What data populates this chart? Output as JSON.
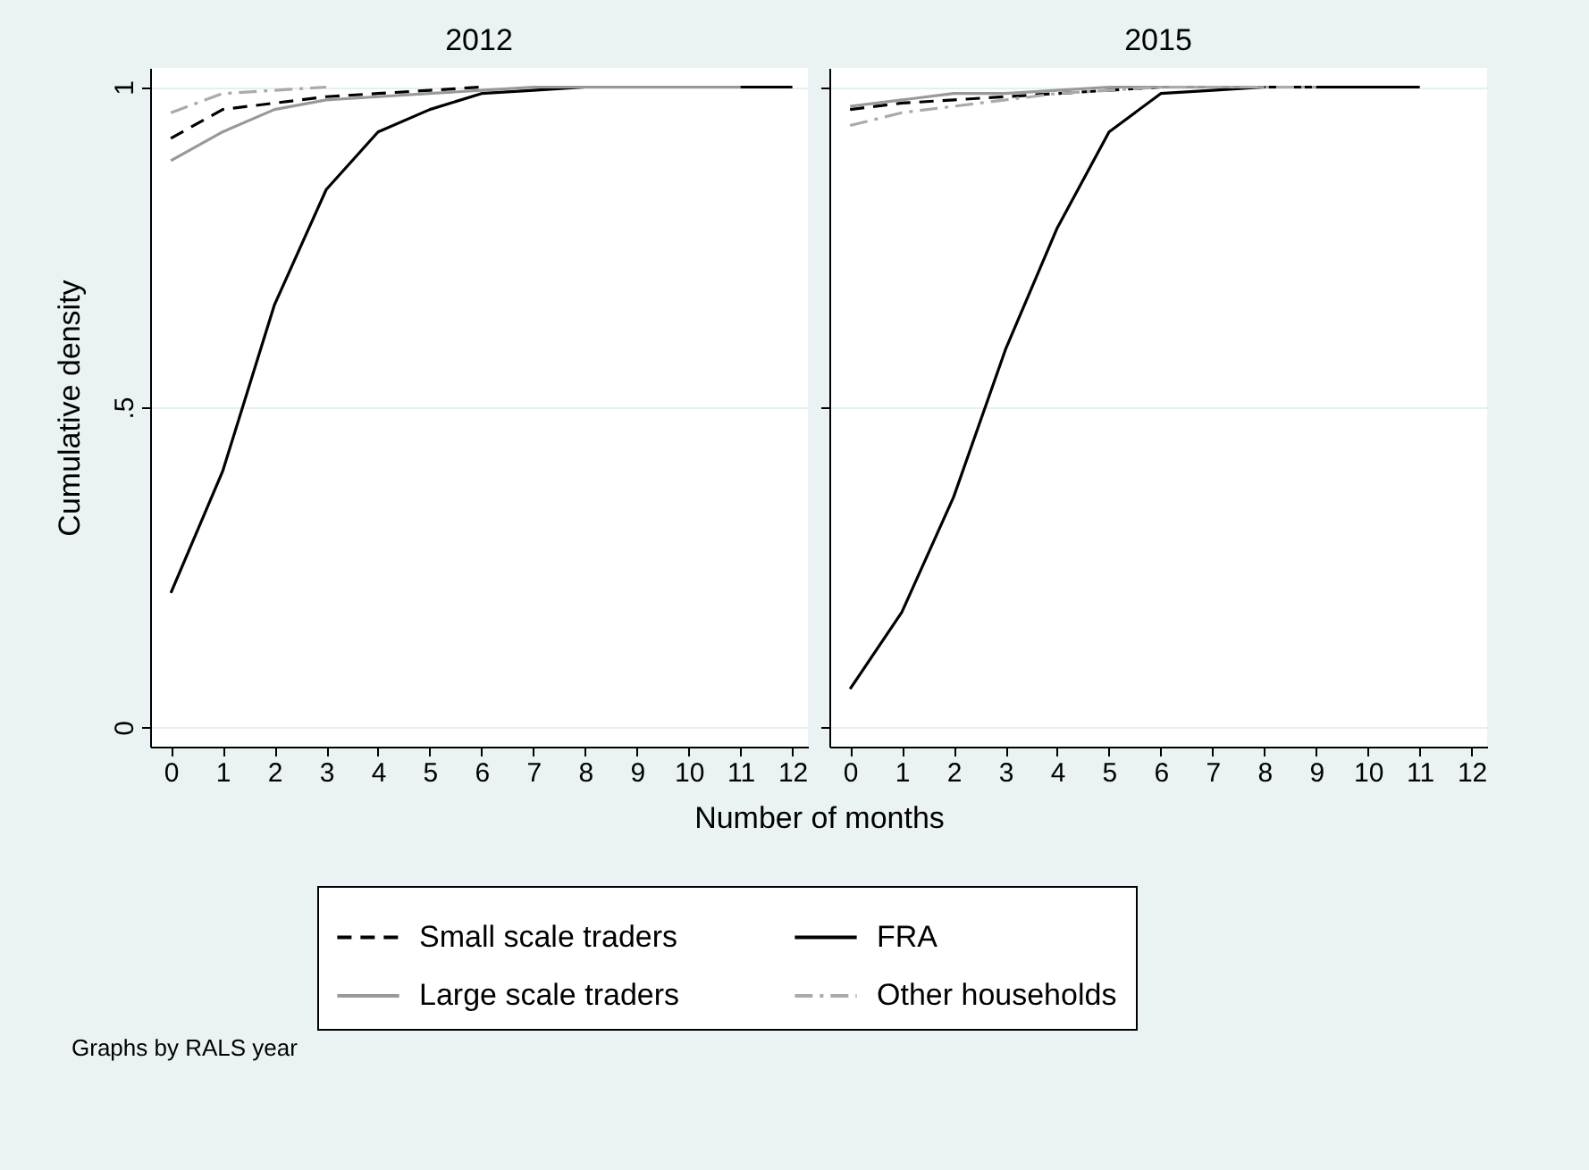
{
  "chart_data": [
    {
      "type": "line",
      "title": "2012",
      "ylabel": "Cumulative density",
      "xlabel": "Number of months",
      "annotations": [
        "Graphs by RALS year"
      ],
      "x": [
        0,
        1,
        2,
        3,
        4,
        5,
        6,
        7,
        8,
        9,
        10,
        11,
        12
      ],
      "xlim": [
        -0.4,
        12.3
      ],
      "xticks": [
        0,
        1,
        2,
        3,
        4,
        5,
        6,
        7,
        8,
        9,
        10,
        11,
        12
      ],
      "ylim": [
        -0.03,
        1.03
      ],
      "yticks": [
        0,
        {
          "value": 0.5,
          "label": ".5"
        },
        1
      ],
      "grid": "y",
      "legend": "bottom",
      "series": [
        {
          "name": "Small scale traders",
          "color": "#000000",
          "line_style": "dashed",
          "values": [
            0.92,
            0.965,
            0.975,
            0.985,
            0.99,
            0.995,
            1.0,
            null,
            null,
            null,
            null,
            null,
            null
          ]
        },
        {
          "name": "FRA",
          "color": "#000000",
          "line_style": "solid",
          "values": [
            0.21,
            0.4,
            0.66,
            0.84,
            0.93,
            0.965,
            0.99,
            0.995,
            1.0,
            1.0,
            1.0,
            1.0,
            1.0
          ]
        },
        {
          "name": "Large scale traders",
          "color": "#999999",
          "line_style": "solid",
          "values": [
            0.885,
            0.93,
            0.965,
            0.98,
            0.985,
            0.99,
            0.995,
            1.0,
            1.0,
            1.0,
            1.0,
            1.0,
            null
          ]
        },
        {
          "name": "Other households",
          "color": "#aaaaaa",
          "line_style": "dashdot",
          "values": [
            0.96,
            0.99,
            0.995,
            1.0,
            null,
            null,
            null,
            null,
            null,
            null,
            null,
            null,
            null
          ]
        }
      ]
    },
    {
      "type": "line",
      "title": "2015",
      "x": [
        0,
        1,
        2,
        3,
        4,
        5,
        6,
        7,
        8,
        9,
        10,
        11
      ],
      "xlim": [
        -0.4,
        12.3
      ],
      "xticks": [
        0,
        1,
        2,
        3,
        4,
        5,
        6,
        7,
        8,
        9,
        10,
        11,
        12
      ],
      "ylim": [
        -0.03,
        1.03
      ],
      "yticks": [
        0,
        0.5,
        1
      ],
      "grid": "y",
      "legend": "bottom",
      "tick_labels": "x",
      "series": [
        {
          "name": "Small scale traders",
          "color": "#000000",
          "line_style": "dashed",
          "values": [
            0.965,
            0.975,
            0.98,
            0.985,
            0.99,
            0.995,
            1.0,
            1.0,
            null,
            null,
            null,
            null
          ]
        },
        {
          "name": "FRA",
          "color": "#000000",
          "line_style": "solid",
          "values": [
            0.06,
            0.18,
            0.36,
            0.59,
            0.78,
            0.93,
            0.99,
            0.995,
            1.0,
            1.0,
            1.0,
            1.0
          ]
        },
        {
          "name": "Large scale traders",
          "color": "#999999",
          "line_style": "solid",
          "values": [
            0.97,
            0.98,
            0.99,
            0.99,
            0.995,
            1.0,
            1.0,
            1.0,
            1.0,
            null,
            null,
            null
          ]
        },
        {
          "name": "Other households",
          "color": "#aaaaaa",
          "line_style": "dashdot",
          "values": [
            0.94,
            0.96,
            0.97,
            0.98,
            0.99,
            0.995,
            1.0,
            1.0,
            1.0,
            1.0,
            null,
            null
          ]
        }
      ]
    }
  ]
}
